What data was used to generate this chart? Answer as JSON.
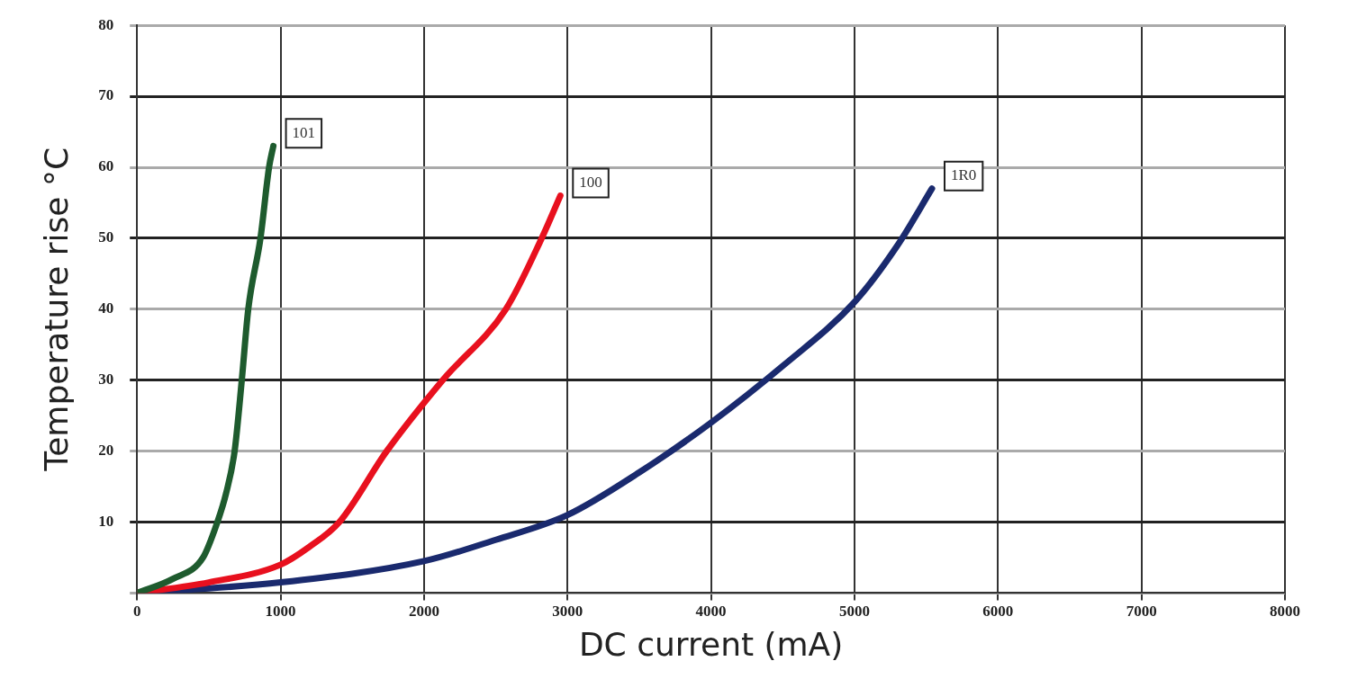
{
  "chart_data": {
    "type": "line",
    "xlabel": "DC current (mA)",
    "ylabel": "Temperature rise °C",
    "xlim": [
      0,
      8000
    ],
    "xticks": [
      0,
      1000,
      2000,
      3000,
      4000,
      5000,
      6000,
      7000,
      8000
    ],
    "ylim": [
      0,
      80
    ],
    "yticks": [
      {
        "value": 0,
        "label": null
      },
      10,
      20,
      30,
      40,
      50,
      60,
      70,
      80
    ],
    "grid": true,
    "legend": false,
    "marker": "none",
    "line_style": "solid",
    "series": [
      {
        "name": "101",
        "color": "#1e5b2e",
        "x": [
          0,
          250,
          460,
          560,
          620,
          680,
          730,
          775,
          860,
          920,
          950
        ],
        "values": [
          0,
          2,
          5,
          10,
          14,
          20,
          30,
          40,
          50,
          60,
          63
        ]
      },
      {
        "name": "100",
        "color": "#e8101e",
        "x": [
          0,
          500,
          1000,
          1200,
          1410,
          1740,
          2130,
          2570,
          2820,
          2950
        ],
        "values": [
          0,
          1.5,
          4,
          6.5,
          10,
          20,
          30,
          40,
          50,
          56
        ]
      },
      {
        "name": "1R0",
        "color": "#1a2a6e",
        "x": [
          0,
          1000,
          2000,
          2500,
          3000,
          3500,
          4000,
          4500,
          5000,
          5300,
          5540
        ],
        "values": [
          0,
          1.5,
          4.5,
          7.5,
          11,
          17,
          24,
          32,
          41,
          49,
          57
        ]
      }
    ]
  }
}
